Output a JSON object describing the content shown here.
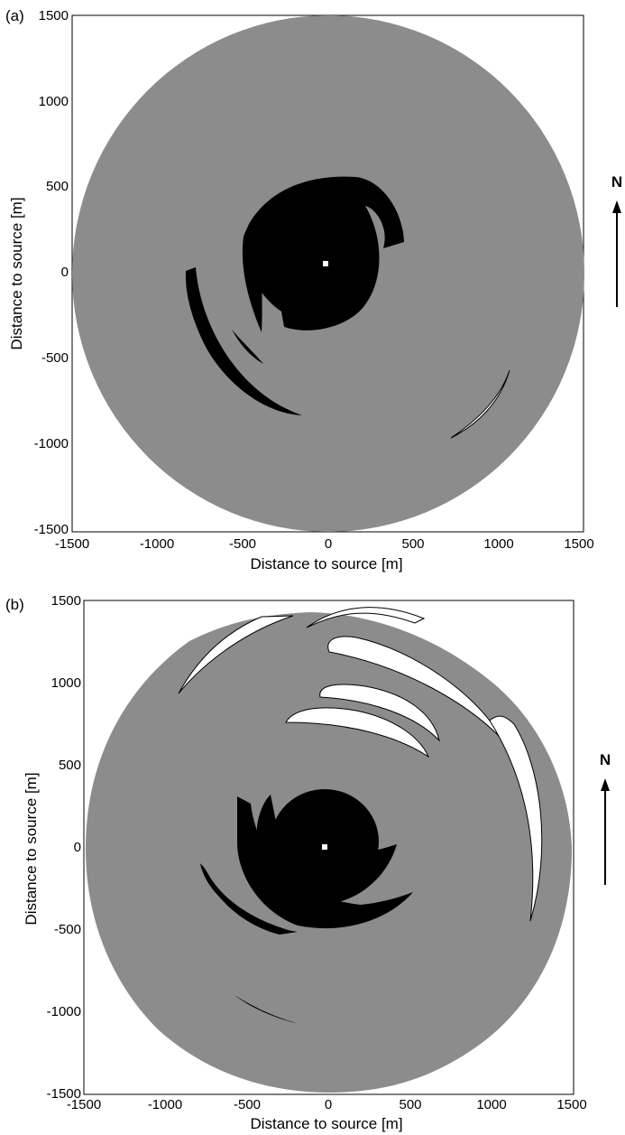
{
  "colors": {
    "background": "#ffffff",
    "domain_fill": "#8c8c8c",
    "black_zone": "#000000",
    "white_zone": "#ffffff",
    "source_marker": "#ffffff"
  },
  "panels": [
    {
      "id": "a",
      "label": "(a)",
      "xlabel": "Distance to source [m]",
      "ylabel": "Distance to source [m]",
      "xticks": [
        "-1500",
        "-1000",
        "-500",
        "0",
        "500",
        "1000",
        "1500"
      ],
      "yticks": [
        "1500",
        "1000",
        "500",
        "0",
        "-500",
        "-1000",
        "-1500"
      ],
      "north": "N"
    },
    {
      "id": "b",
      "label": "(b)",
      "xlabel": "Distance to source [m]",
      "ylabel": "Distance to source [m]",
      "xticks": [
        "-1500",
        "-1000",
        "-500",
        "0",
        "500",
        "1000",
        "1500"
      ],
      "yticks": [
        "1500",
        "1000",
        "500",
        "0",
        "-500",
        "-1000",
        "-1500"
      ],
      "north": "N"
    }
  ]
}
